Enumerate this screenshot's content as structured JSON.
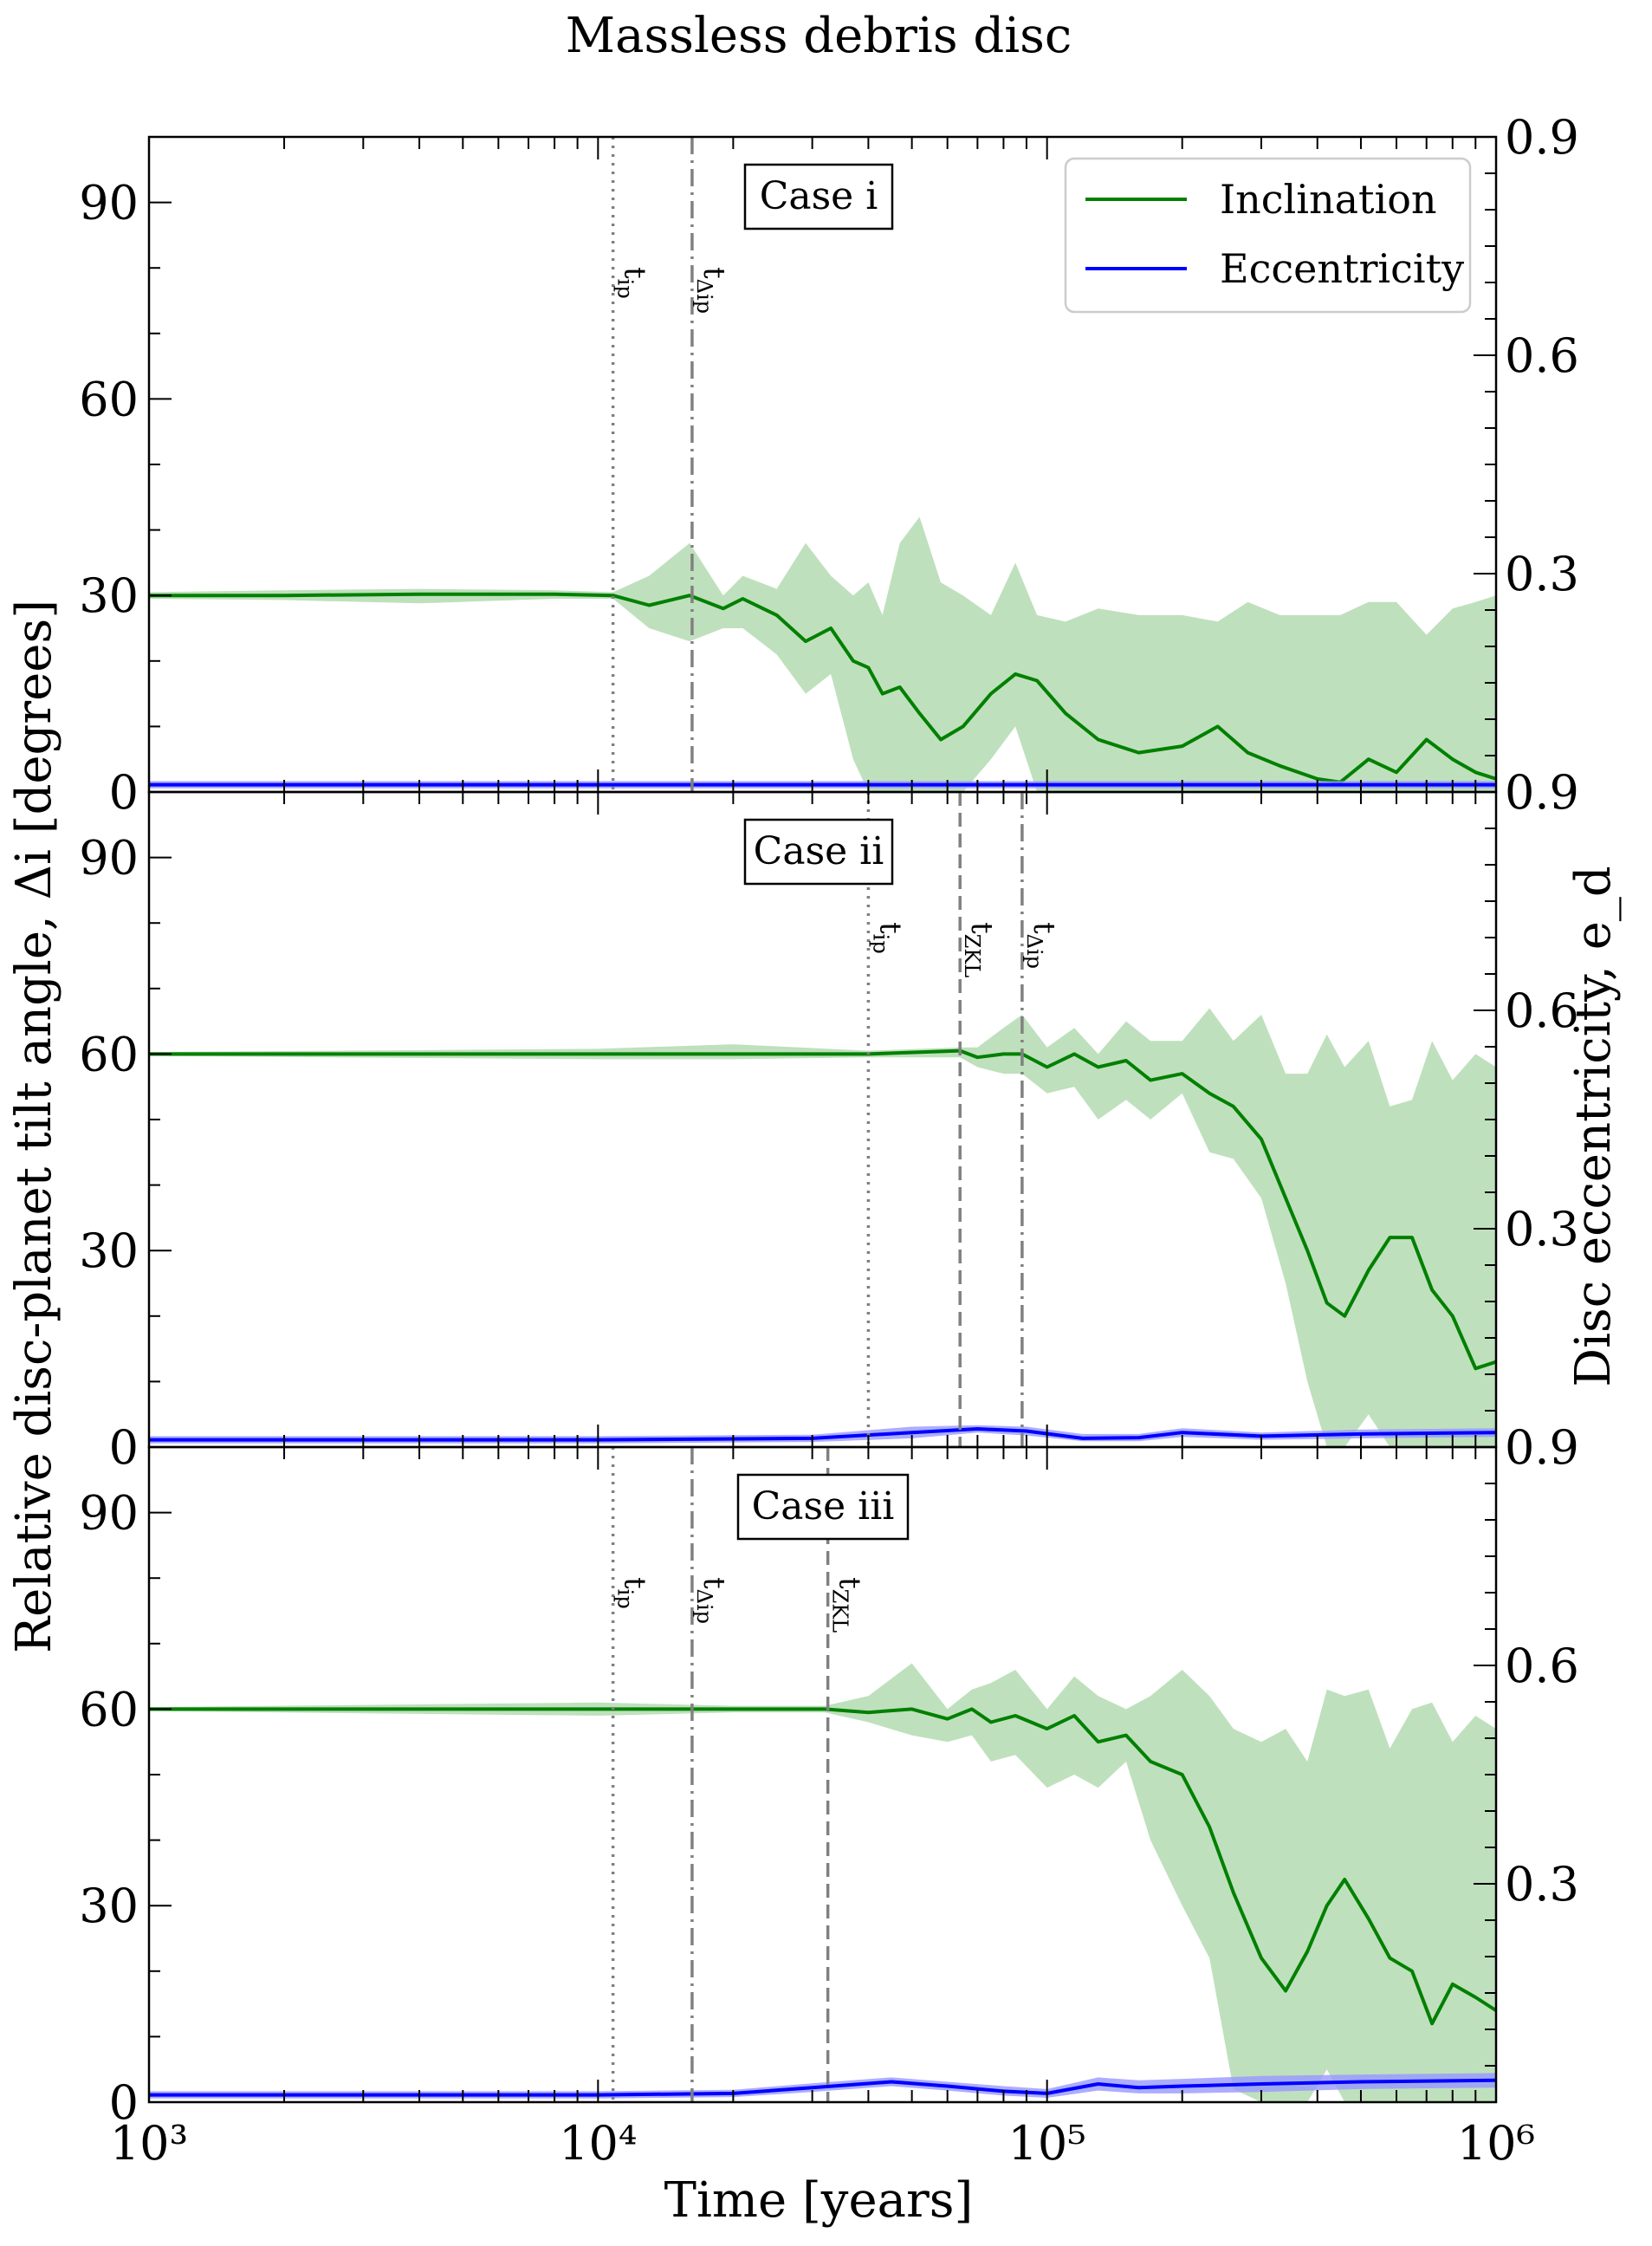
{
  "figure": {
    "title": "Massless debris disc",
    "xlabel": "Time [years]",
    "ylabel_left": "Relative disc-planet tilt angle, Δi [degrees]",
    "ylabel_right": "Disc eccentricity, e_d",
    "xtick_labels": [
      "10³",
      "10⁴",
      "10⁵",
      "10⁶"
    ],
    "left_tick_labels": [
      "0",
      "30",
      "60",
      "90"
    ],
    "right_tick_labels": [
      "0.3",
      "0.6",
      "0.9"
    ],
    "legend": [
      {
        "label": "Inclination",
        "color": "#008000"
      },
      {
        "label": "Eccentricity",
        "color": "#0000ff"
      }
    ],
    "colors": {
      "inclination": "#008000",
      "inclination_band": "#9dcf99",
      "eccentricity": "#0000ff",
      "eccentricity_band": "#9999ff",
      "marker_lines": "#808080"
    }
  },
  "chart_data": [
    {
      "type": "line",
      "title": "Case i",
      "xlabel": "Time [years]",
      "ylabel": "Relative disc-planet tilt angle, Δi [degrees]",
      "xscale": "log",
      "xlim": [
        1000,
        1000000
      ],
      "ylim": [
        0,
        100
      ],
      "ylim_right": [
        0,
        0.9
      ],
      "vlines": [
        {
          "label": "t_ip",
          "x": 10800,
          "style": "dotted"
        },
        {
          "label": "t_Δip",
          "x": 16200,
          "style": "dashdot"
        }
      ],
      "series": [
        {
          "name": "Inclination",
          "x": [
            1000,
            2000,
            4000,
            8000,
            10800,
            13000,
            16000,
            19000,
            21000,
            25000,
            29000,
            33000,
            37000,
            40000,
            43000,
            47000,
            52000,
            58000,
            65000,
            75000,
            85000,
            95000,
            110000,
            130000,
            160000,
            200000,
            240000,
            280000,
            330000,
            400000,
            450000,
            520000,
            600000,
            700000,
            800000,
            900000,
            1000000
          ],
          "y": [
            30,
            30,
            30.2,
            30.2,
            30,
            28.5,
            30,
            28,
            29.5,
            27,
            23,
            25,
            20,
            19,
            15,
            16,
            12,
            8,
            10,
            15,
            18,
            17,
            12,
            8,
            6,
            7,
            10,
            6,
            4,
            2,
            1.5,
            5,
            3,
            8,
            5,
            3,
            2
          ],
          "band_upper": [
            30.5,
            30.8,
            31,
            30.8,
            30.5,
            33,
            38,
            30,
            33,
            31,
            38,
            33,
            30,
            32,
            27,
            38,
            42,
            32,
            30,
            27,
            35,
            27,
            26,
            28,
            27,
            27,
            26,
            29,
            27,
            27,
            27,
            29,
            29,
            24,
            28,
            29,
            30
          ],
          "band_lower": [
            29.5,
            29.3,
            28.8,
            29.5,
            29.5,
            25,
            23,
            25,
            25,
            21,
            15,
            18,
            5,
            0,
            0,
            0,
            0,
            0,
            0,
            5,
            10,
            0,
            0,
            0,
            0,
            0,
            0,
            0,
            0,
            0,
            0,
            0,
            0,
            0,
            0,
            0,
            0
          ]
        },
        {
          "name": "Eccentricity",
          "x": [
            1000,
            10000,
            100000,
            1000000
          ],
          "y": [
            0.01,
            0.01,
            0.01,
            0.01
          ],
          "band_upper": [
            0.015,
            0.015,
            0.015,
            0.015
          ],
          "band_lower": [
            0.005,
            0.005,
            0.005,
            0.005
          ]
        }
      ]
    },
    {
      "type": "line",
      "title": "Case ii",
      "xlabel": "Time [years]",
      "ylabel": "Relative disc-planet tilt angle, Δi [degrees]",
      "xscale": "log",
      "xlim": [
        1000,
        1000000
      ],
      "ylim": [
        0,
        100
      ],
      "ylim_right": [
        0,
        0.9
      ],
      "vlines": [
        {
          "label": "t_ip",
          "x": 40000,
          "style": "dotted"
        },
        {
          "label": "t_ZKL",
          "x": 64000,
          "style": "dashed"
        },
        {
          "label": "t_Δip",
          "x": 88000,
          "style": "dashdot"
        }
      ],
      "series": [
        {
          "name": "Inclination",
          "x": [
            1000,
            10000,
            20000,
            40000,
            64000,
            70000,
            80000,
            88000,
            100000,
            115000,
            130000,
            150000,
            170000,
            200000,
            230000,
            260000,
            300000,
            340000,
            380000,
            420000,
            460000,
            520000,
            580000,
            650000,
            720000,
            800000,
            900000,
            1000000
          ],
          "y": [
            60,
            60,
            60,
            60,
            60.5,
            59.5,
            60,
            60,
            58,
            60,
            58,
            59,
            56,
            57,
            54,
            52,
            47,
            38,
            30,
            22,
            20,
            27,
            32,
            32,
            24,
            20,
            12,
            13
          ],
          "band_upper": [
            60.3,
            60.8,
            61.5,
            60.5,
            61,
            61,
            64,
            66,
            61,
            64,
            60,
            65,
            62,
            62,
            67,
            62,
            66,
            57,
            57,
            63,
            58,
            62,
            52,
            53,
            62,
            56,
            60,
            58
          ],
          "band_lower": [
            59.7,
            59.2,
            59.2,
            59.5,
            59.5,
            58,
            57,
            57,
            54,
            55,
            50,
            53,
            50,
            54,
            45,
            44,
            38,
            25,
            10,
            0,
            0,
            5,
            0,
            0,
            0,
            0,
            0,
            0
          ]
        },
        {
          "name": "Eccentricity",
          "x": [
            1000,
            10000,
            30000,
            50000,
            70000,
            90000,
            120000,
            160000,
            200000,
            300000,
            500000,
            1000000
          ],
          "y": [
            0.01,
            0.01,
            0.012,
            0.02,
            0.025,
            0.022,
            0.012,
            0.013,
            0.02,
            0.015,
            0.018,
            0.02
          ],
          "band_upper": [
            0.015,
            0.015,
            0.017,
            0.028,
            0.03,
            0.028,
            0.018,
            0.018,
            0.026,
            0.02,
            0.024,
            0.026
          ],
          "band_lower": [
            0.005,
            0.005,
            0.007,
            0.012,
            0.02,
            0.016,
            0.008,
            0.008,
            0.014,
            0.01,
            0.012,
            0.014
          ]
        }
      ]
    },
    {
      "type": "line",
      "title": "Case iii",
      "xlabel": "Time [years]",
      "ylabel": "Relative disc-planet tilt angle, Δi [degrees]",
      "xscale": "log",
      "xlim": [
        1000,
        1000000
      ],
      "ylim": [
        0,
        100
      ],
      "ylim_right": [
        0,
        0.9
      ],
      "vlines": [
        {
          "label": "t_ip",
          "x": 10800,
          "style": "dotted"
        },
        {
          "label": "t_Δip",
          "x": 16200,
          "style": "dashdot"
        },
        {
          "label": "t_ZKL",
          "x": 32500,
          "style": "dashed"
        }
      ],
      "series": [
        {
          "name": "Inclination",
          "x": [
            1000,
            10000,
            20000,
            32000,
            40000,
            50000,
            60000,
            68000,
            75000,
            85000,
            100000,
            115000,
            130000,
            150000,
            170000,
            200000,
            230000,
            260000,
            300000,
            340000,
            380000,
            420000,
            460000,
            520000,
            580000,
            650000,
            720000,
            800000,
            900000,
            1000000
          ],
          "y": [
            60,
            60,
            60,
            60,
            59.5,
            60,
            58.5,
            60,
            58,
            59,
            57,
            59,
            55,
            56,
            52,
            50,
            42,
            32,
            22,
            17,
            23,
            30,
            34,
            28,
            22,
            20,
            12,
            18,
            16,
            14
          ],
          "band_upper": [
            60.3,
            61,
            60.5,
            60.5,
            62,
            67,
            60,
            63,
            64,
            66,
            60,
            65,
            62,
            60,
            62,
            66,
            62,
            57,
            55,
            57,
            52,
            63,
            62,
            63,
            54,
            60,
            61,
            55,
            59,
            57
          ],
          "band_lower": [
            59.7,
            59,
            59.5,
            59.5,
            58,
            56,
            55,
            56,
            52,
            53,
            48,
            50,
            48,
            52,
            40,
            30,
            22,
            2,
            0,
            0,
            0,
            5,
            0,
            0,
            0,
            0,
            0,
            0,
            0,
            0
          ]
        },
        {
          "name": "Eccentricity",
          "x": [
            1000,
            10000,
            20000,
            30000,
            45000,
            60000,
            80000,
            100000,
            130000,
            160000,
            200000,
            300000,
            500000,
            1000000
          ],
          "y": [
            0.01,
            0.01,
            0.012,
            0.02,
            0.028,
            0.022,
            0.015,
            0.012,
            0.025,
            0.02,
            0.022,
            0.025,
            0.028,
            0.03
          ],
          "band_upper": [
            0.015,
            0.015,
            0.017,
            0.026,
            0.034,
            0.028,
            0.022,
            0.018,
            0.034,
            0.03,
            0.032,
            0.036,
            0.038,
            0.04
          ],
          "band_lower": [
            0.005,
            0.005,
            0.007,
            0.014,
            0.022,
            0.016,
            0.009,
            0.006,
            0.016,
            0.012,
            0.012,
            0.014,
            0.018,
            0.02
          ]
        }
      ]
    }
  ]
}
